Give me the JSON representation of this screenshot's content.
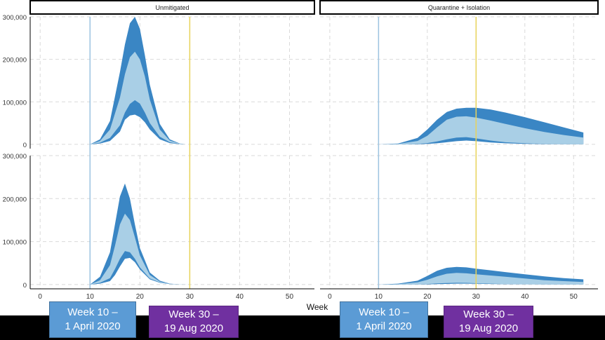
{
  "colors": {
    "band_outer": "#3a86c4",
    "band_inner": "#a9cfe6",
    "week10_line": "#9cc3e0",
    "week30_line": "#e8d35a",
    "grid": "#d9d9d9",
    "label_week10_bg": "#5b9bd5",
    "label_week30_bg": "#7030a0"
  },
  "labels": {
    "week10": {
      "line1": "Week 10 –",
      "line2": "1 April 2020"
    },
    "week30": {
      "line1": "Week 30 –",
      "line2": "19 Aug 2020"
    }
  },
  "chart_data": {
    "type": "area",
    "xlabel": "Week",
    "xlim": [
      -2,
      55
    ],
    "ylim": [
      -10000,
      300000
    ],
    "x_ticks": [
      0,
      10,
      20,
      30,
      40,
      50
    ],
    "y_ticks": [
      0,
      100000,
      200000,
      300000
    ],
    "y_tick_labels": [
      "0",
      "100,000",
      "200,000",
      "300,000"
    ],
    "grid": true,
    "reference_lines": [
      10,
      30
    ],
    "facet_columns": [
      "Unmitigated",
      "Quarantine + Isolation"
    ],
    "panels": [
      {
        "row": 0,
        "column": "Unmitigated",
        "x": [
          5,
          10,
          12,
          14,
          16,
          17,
          18,
          19,
          20,
          21,
          22,
          24,
          26,
          28,
          29,
          30
        ],
        "outer_low": [
          0,
          0,
          2000,
          8000,
          30000,
          58000,
          68000,
          70000,
          64000,
          52000,
          35000,
          12000,
          3000,
          500,
          0,
          0
        ],
        "inner_low": [
          0,
          0,
          4000,
          15000,
          45000,
          75000,
          95000,
          104000,
          96000,
          75000,
          50000,
          18000,
          5000,
          800,
          0,
          0
        ],
        "inner_high": [
          0,
          0,
          8000,
          35000,
          110000,
          165000,
          205000,
          218000,
          200000,
          160000,
          105000,
          35000,
          9000,
          1500,
          0,
          0
        ],
        "outer_high": [
          0,
          0,
          12000,
          55000,
          170000,
          235000,
          285000,
          300000,
          272000,
          210000,
          140000,
          48000,
          12000,
          2000,
          0,
          0
        ]
      },
      {
        "row": 0,
        "column": "Quarantine + Isolation",
        "x": [
          10,
          14,
          18,
          20,
          22,
          24,
          26,
          28,
          30,
          33,
          36,
          40,
          44,
          48,
          52
        ],
        "outer_low": [
          0,
          0,
          300,
          1000,
          2500,
          5000,
          7500,
          9000,
          7500,
          4500,
          2500,
          1200,
          600,
          300,
          150
        ],
        "inner_low": [
          0,
          0,
          1000,
          3000,
          7000,
          12000,
          16000,
          17000,
          14000,
          9000,
          5000,
          2500,
          1200,
          600,
          300
        ],
        "inner_high": [
          0,
          1000,
          8000,
          20000,
          40000,
          58000,
          65000,
          66000,
          63000,
          56000,
          48000,
          38000,
          29000,
          22000,
          16000
        ],
        "outer_high": [
          0,
          2000,
          15000,
          35000,
          58000,
          76000,
          84000,
          86000,
          86000,
          82000,
          75000,
          64000,
          52000,
          40000,
          28000
        ]
      },
      {
        "row": 1,
        "column": "Unmitigated",
        "x": [
          5,
          10,
          12,
          14,
          15,
          16,
          17,
          18,
          19,
          20,
          22,
          24,
          26,
          28,
          30
        ],
        "outer_low": [
          0,
          0,
          2000,
          8000,
          22000,
          42000,
          60000,
          62000,
          52000,
          35000,
          12000,
          4000,
          1000,
          200,
          0
        ],
        "inner_low": [
          0,
          0,
          4000,
          15000,
          36000,
          60000,
          78000,
          75000,
          60000,
          40000,
          14000,
          5000,
          1200,
          300,
          0
        ],
        "inner_high": [
          0,
          0,
          10000,
          45000,
          90000,
          140000,
          165000,
          150000,
          110000,
          68000,
          22000,
          7000,
          1600,
          400,
          0
        ],
        "outer_high": [
          0,
          0,
          18000,
          75000,
          140000,
          205000,
          235000,
          200000,
          140000,
          85000,
          28000,
          9000,
          2000,
          500,
          0
        ]
      },
      {
        "row": 1,
        "column": "Quarantine + Isolation",
        "x": [
          10,
          14,
          18,
          20,
          22,
          24,
          26,
          28,
          30,
          33,
          36,
          40,
          44,
          48,
          52
        ],
        "outer_low": [
          0,
          0,
          200,
          500,
          1000,
          1500,
          2000,
          2000,
          1800,
          1200,
          800,
          400,
          200,
          100,
          50
        ],
        "inner_low": [
          0,
          0,
          500,
          1200,
          2500,
          3500,
          4000,
          3800,
          3000,
          2000,
          1200,
          600,
          300,
          150,
          80
        ],
        "inner_high": [
          0,
          1000,
          5000,
          11000,
          19000,
          25000,
          27000,
          26000,
          24000,
          21000,
          18000,
          14000,
          10000,
          8000,
          6000
        ],
        "outer_high": [
          0,
          2000,
          9000,
          20000,
          32000,
          39000,
          41000,
          40000,
          37000,
          33000,
          29000,
          24000,
          19000,
          15000,
          12000
        ]
      }
    ]
  }
}
